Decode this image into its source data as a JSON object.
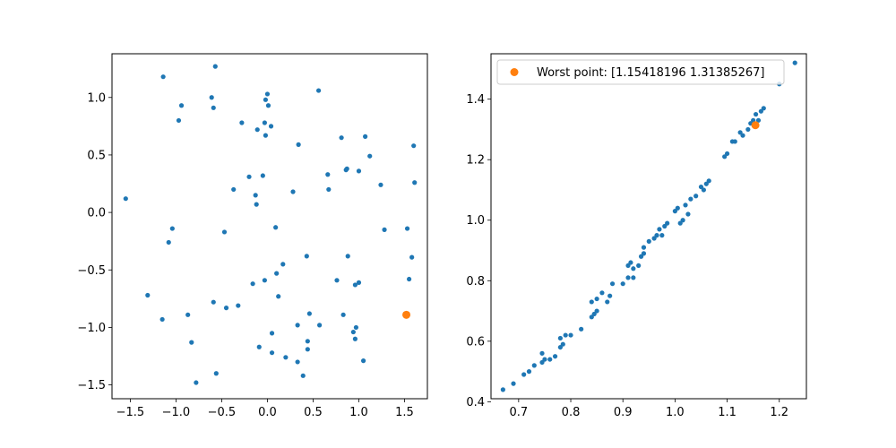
{
  "chart_data": [
    {
      "type": "scatter",
      "title": "",
      "xlabel": "",
      "ylabel": "",
      "xlim": [
        -1.7,
        1.75
      ],
      "ylim": [
        -1.62,
        1.38
      ],
      "xticks": [
        -1.5,
        -1.0,
        -0.5,
        0.0,
        0.5,
        1.0,
        1.5
      ],
      "xtick_labels": [
        "−1.5",
        "−1.0",
        "−0.5",
        "0.0",
        "0.5",
        "1.0",
        "1.5"
      ],
      "yticks": [
        -1.5,
        -1.0,
        -0.5,
        0.0,
        0.5,
        1.0
      ],
      "ytick_labels": [
        "−1.5",
        "−1.0",
        "−0.5",
        "0.0",
        "0.5",
        "1.0"
      ],
      "grid": false,
      "series": [
        {
          "color": "#1f77b4",
          "points": [
            [
              -1.55,
              0.12
            ],
            [
              -1.31,
              -0.72
            ],
            [
              -1.14,
              1.18
            ],
            [
              -1.15,
              -0.93
            ],
            [
              -1.08,
              -0.26
            ],
            [
              -1.04,
              -0.14
            ],
            [
              -0.97,
              0.8
            ],
            [
              -0.94,
              0.93
            ],
            [
              -0.87,
              -0.89
            ],
            [
              -0.83,
              -1.13
            ],
            [
              -0.78,
              -1.48
            ],
            [
              -0.61,
              1.0
            ],
            [
              -0.59,
              0.91
            ],
            [
              -0.59,
              -0.78
            ],
            [
              -0.57,
              1.27
            ],
            [
              -0.56,
              -1.4
            ],
            [
              -0.47,
              -0.17
            ],
            [
              -0.45,
              -0.83
            ],
            [
              -0.37,
              0.2
            ],
            [
              -0.32,
              -0.81
            ],
            [
              -0.28,
              0.78
            ],
            [
              -0.2,
              0.31
            ],
            [
              -0.16,
              -0.62
            ],
            [
              -0.13,
              0.15
            ],
            [
              -0.12,
              0.07
            ],
            [
              -0.11,
              0.72
            ],
            [
              -0.09,
              -1.17
            ],
            [
              -0.05,
              0.32
            ],
            [
              -0.03,
              -0.59
            ],
            [
              -0.03,
              0.78
            ],
            [
              -0.02,
              0.67
            ],
            [
              -0.02,
              0.98
            ],
            [
              0.0,
              1.03
            ],
            [
              0.01,
              0.93
            ],
            [
              0.04,
              0.75
            ],
            [
              0.05,
              -1.05
            ],
            [
              0.05,
              -1.22
            ],
            [
              0.09,
              -0.13
            ],
            [
              0.1,
              -0.53
            ],
            [
              0.12,
              -0.73
            ],
            [
              0.17,
              -0.45
            ],
            [
              0.2,
              -1.26
            ],
            [
              0.28,
              0.18
            ],
            [
              0.33,
              -1.3
            ],
            [
              0.33,
              -0.98
            ],
            [
              0.34,
              0.59
            ],
            [
              0.39,
              -1.42
            ],
            [
              0.43,
              -0.38
            ],
            [
              0.44,
              -1.19
            ],
            [
              0.44,
              -1.12
            ],
            [
              0.46,
              -0.88
            ],
            [
              0.56,
              1.06
            ],
            [
              0.57,
              -0.98
            ],
            [
              0.66,
              0.33
            ],
            [
              0.67,
              0.2
            ],
            [
              0.76,
              -0.59
            ],
            [
              0.81,
              0.65
            ],
            [
              0.83,
              -0.89
            ],
            [
              0.86,
              0.37
            ],
            [
              0.87,
              0.38
            ],
            [
              0.88,
              -0.38
            ],
            [
              0.94,
              -1.04
            ],
            [
              0.96,
              -0.63
            ],
            [
              0.96,
              -1.1
            ],
            [
              0.97,
              -1.0
            ],
            [
              1.0,
              -0.61
            ],
            [
              1.0,
              0.36
            ],
            [
              1.05,
              -1.29
            ],
            [
              1.07,
              0.66
            ],
            [
              1.12,
              0.49
            ],
            [
              1.24,
              0.24
            ],
            [
              1.28,
              -0.15
            ],
            [
              1.53,
              -0.14
            ],
            [
              1.55,
              -0.58
            ],
            [
              1.58,
              -0.39
            ],
            [
              1.6,
              0.58
            ],
            [
              1.61,
              0.26
            ]
          ]
        },
        {
          "color": "#ff7f0e",
          "points": [
            [
              1.52,
              -0.89
            ]
          ]
        }
      ]
    },
    {
      "type": "scatter",
      "title": "",
      "xlabel": "",
      "ylabel": "",
      "xlim": [
        0.647,
        1.252
      ],
      "ylim": [
        0.41,
        1.55
      ],
      "xticks": [
        0.7,
        0.8,
        0.9,
        1.0,
        1.1,
        1.2
      ],
      "xtick_labels": [
        "0.7",
        "0.8",
        "0.9",
        "1.0",
        "1.1",
        "1.2"
      ],
      "yticks": [
        0.4,
        0.6,
        0.8,
        1.0,
        1.2,
        1.4
      ],
      "ytick_labels": [
        "0.4",
        "0.6",
        "0.8",
        "1.0",
        "1.2",
        "1.4"
      ],
      "grid": false,
      "legend": {
        "placement": "upper left",
        "entries": [
          {
            "label": "Worst point: [1.15418196 1.31385267]",
            "color": "#ff7f0e"
          }
        ]
      },
      "series": [
        {
          "color": "#1f77b4",
          "points": [
            [
              0.67,
              0.44
            ],
            [
              0.69,
              0.46
            ],
            [
              0.71,
              0.49
            ],
            [
              0.72,
              0.5
            ],
            [
              0.73,
              0.52
            ],
            [
              0.745,
              0.53
            ],
            [
              0.75,
              0.54
            ],
            [
              0.745,
              0.56
            ],
            [
              0.76,
              0.54
            ],
            [
              0.77,
              0.55
            ],
            [
              0.78,
              0.58
            ],
            [
              0.785,
              0.59
            ],
            [
              0.78,
              0.61
            ],
            [
              0.79,
              0.62
            ],
            [
              0.8,
              0.62
            ],
            [
              0.82,
              0.64
            ],
            [
              0.84,
              0.68
            ],
            [
              0.845,
              0.69
            ],
            [
              0.85,
              0.7
            ],
            [
              0.84,
              0.73
            ],
            [
              0.85,
              0.74
            ],
            [
              0.86,
              0.76
            ],
            [
              0.87,
              0.73
            ],
            [
              0.875,
              0.75
            ],
            [
              0.88,
              0.79
            ],
            [
              0.9,
              0.79
            ],
            [
              0.91,
              0.81
            ],
            [
              0.92,
              0.81
            ],
            [
              0.91,
              0.85
            ],
            [
              0.915,
              0.86
            ],
            [
              0.92,
              0.84
            ],
            [
              0.93,
              0.85
            ],
            [
              0.935,
              0.88
            ],
            [
              0.94,
              0.89
            ],
            [
              0.94,
              0.91
            ],
            [
              0.95,
              0.93
            ],
            [
              0.96,
              0.94
            ],
            [
              0.965,
              0.95
            ],
            [
              0.97,
              0.97
            ],
            [
              0.975,
              0.95
            ],
            [
              0.98,
              0.98
            ],
            [
              0.985,
              0.99
            ],
            [
              1.0,
              1.03
            ],
            [
              1.005,
              1.04
            ],
            [
              1.01,
              0.99
            ],
            [
              1.015,
              1.0
            ],
            [
              1.02,
              1.05
            ],
            [
              1.025,
              1.02
            ],
            [
              1.03,
              1.07
            ],
            [
              1.04,
              1.08
            ],
            [
              1.05,
              1.11
            ],
            [
              1.055,
              1.1
            ],
            [
              1.06,
              1.12
            ],
            [
              1.065,
              1.13
            ],
            [
              1.095,
              1.21
            ],
            [
              1.1,
              1.22
            ],
            [
              1.11,
              1.26
            ],
            [
              1.115,
              1.26
            ],
            [
              1.125,
              1.29
            ],
            [
              1.13,
              1.28
            ],
            [
              1.14,
              1.3
            ],
            [
              1.145,
              1.32
            ],
            [
              1.15,
              1.33
            ],
            [
              1.155,
              1.35
            ],
            [
              1.16,
              1.33
            ],
            [
              1.165,
              1.36
            ],
            [
              1.17,
              1.37
            ],
            [
              1.2,
              1.45
            ],
            [
              1.23,
              1.52
            ]
          ]
        },
        {
          "color": "#ff7f0e",
          "points": [
            [
              1.15418196,
              1.31385267
            ]
          ]
        }
      ]
    }
  ]
}
